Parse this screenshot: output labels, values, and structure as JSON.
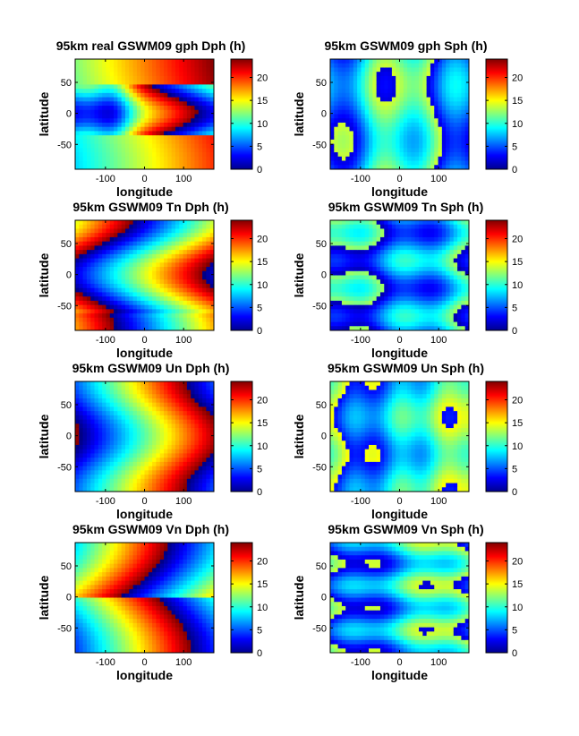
{
  "chart_data": [
    {
      "type": "heatmap",
      "title": "95km real GSWM09 gph Dph (h)",
      "xlabel": "longitude",
      "ylabel": "latitude",
      "field": "gph",
      "component": "diurnal",
      "xlim": [
        -177.5,
        177.5
      ],
      "ylim": [
        -90,
        87.5
      ],
      "xticks": [
        -100,
        0,
        100
      ],
      "yticks": [
        50,
        0,
        -50
      ],
      "colorbar": {
        "range": [
          0,
          24
        ],
        "ticks": [
          0,
          5,
          10,
          15,
          20
        ],
        "colormap": "jet"
      }
    },
    {
      "type": "heatmap",
      "title": "95km GSWM09 gph Sph (h)",
      "xlabel": "longitude",
      "ylabel": "latitude",
      "field": "gph",
      "component": "semidiurnal",
      "xlim": [
        -177.5,
        177.5
      ],
      "ylim": [
        -90,
        87.5
      ],
      "xticks": [
        -100,
        0,
        100
      ],
      "yticks": [
        50,
        0,
        -50
      ],
      "colorbar": {
        "range": [
          0,
          24
        ],
        "ticks": [
          0,
          5,
          10,
          15,
          20
        ],
        "colormap": "jet"
      }
    },
    {
      "type": "heatmap",
      "title": "95km GSWM09 Tn Dph (h)",
      "xlabel": "longitude",
      "ylabel": "latitude",
      "field": "Tn",
      "component": "diurnal",
      "xlim": [
        -177.5,
        177.5
      ],
      "ylim": [
        -90,
        87.5
      ],
      "xticks": [
        -100,
        0,
        100
      ],
      "yticks": [
        50,
        0,
        -50
      ],
      "colorbar": {
        "range": [
          0,
          24
        ],
        "ticks": [
          0,
          5,
          10,
          15,
          20
        ],
        "colormap": "jet"
      }
    },
    {
      "type": "heatmap",
      "title": "95km GSWM09 Tn Sph (h)",
      "xlabel": "longitude",
      "ylabel": "latitude",
      "field": "Tn",
      "component": "semidiurnal",
      "xlim": [
        -177.5,
        177.5
      ],
      "ylim": [
        -90,
        87.5
      ],
      "xticks": [
        -100,
        0,
        100
      ],
      "yticks": [
        50,
        0,
        -50
      ],
      "colorbar": {
        "range": [
          0,
          24
        ],
        "ticks": [
          0,
          5,
          10,
          15,
          20
        ],
        "colormap": "jet"
      }
    },
    {
      "type": "heatmap",
      "title": "95km GSWM09 Un Dph (h)",
      "xlabel": "longitude",
      "ylabel": "latitude",
      "field": "Un",
      "component": "diurnal",
      "xlim": [
        -177.5,
        177.5
      ],
      "ylim": [
        -90,
        87.5
      ],
      "xticks": [
        -100,
        0,
        100
      ],
      "yticks": [
        50,
        0,
        -50
      ],
      "colorbar": {
        "range": [
          0,
          24
        ],
        "ticks": [
          0,
          5,
          10,
          15,
          20
        ],
        "colormap": "jet"
      }
    },
    {
      "type": "heatmap",
      "title": "95km GSWM09 Un Sph (h)",
      "xlabel": "longitude",
      "ylabel": "latitude",
      "field": "Un",
      "component": "semidiurnal",
      "xlim": [
        -177.5,
        177.5
      ],
      "ylim": [
        -90,
        87.5
      ],
      "xticks": [
        -100,
        0,
        100
      ],
      "yticks": [
        50,
        0,
        -50
      ],
      "colorbar": {
        "range": [
          0,
          24
        ],
        "ticks": [
          0,
          5,
          10,
          15,
          20
        ],
        "colormap": "jet"
      }
    },
    {
      "type": "heatmap",
      "title": "95km GSWM09 Vn Dph (h)",
      "xlabel": "longitude",
      "ylabel": "latitude",
      "field": "Vn",
      "component": "diurnal",
      "xlim": [
        -177.5,
        177.5
      ],
      "ylim": [
        -90,
        87.5
      ],
      "xticks": [
        -100,
        0,
        100
      ],
      "yticks": [
        50,
        0,
        -50
      ],
      "colorbar": {
        "range": [
          0,
          24
        ],
        "ticks": [
          0,
          5,
          10,
          15,
          20
        ],
        "colormap": "jet"
      }
    },
    {
      "type": "heatmap",
      "title": "95km GSWM09 Vn Sph (h)",
      "xlabel": "longitude",
      "ylabel": "latitude",
      "field": "Vn",
      "component": "semidiurnal",
      "xlim": [
        -177.5,
        177.5
      ],
      "ylim": [
        -90,
        87.5
      ],
      "xticks": [
        -100,
        0,
        100
      ],
      "yticks": [
        50,
        0,
        -50
      ],
      "colorbar": {
        "range": [
          0,
          24
        ],
        "ticks": [
          0,
          5,
          10,
          15,
          20
        ],
        "colormap": "jet"
      }
    }
  ]
}
